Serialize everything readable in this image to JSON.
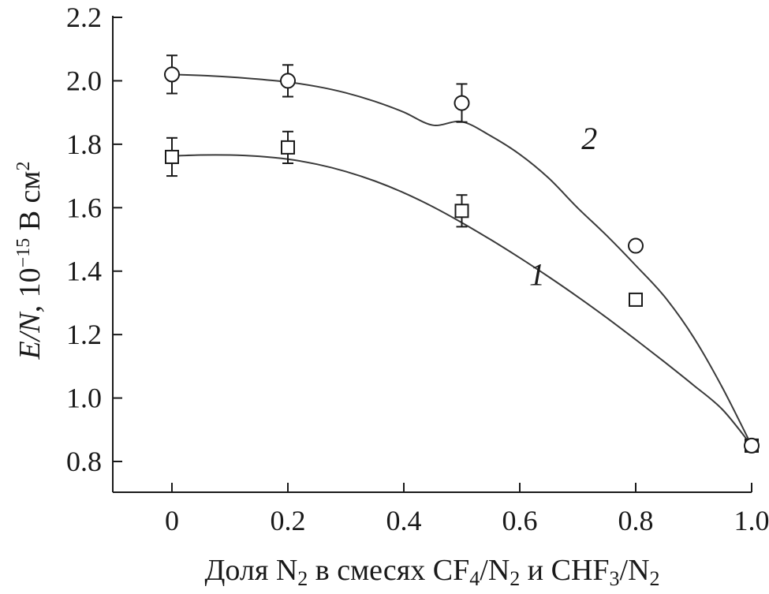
{
  "chart_data": {
    "type": "scatter",
    "xlabel": {
      "parts": [
        {
          "text": "Доля N",
          "sub": false
        },
        {
          "text": "2",
          "sub": true
        },
        {
          "text": " в смесях CF",
          "sub": false
        },
        {
          "text": "4",
          "sub": true
        },
        {
          "text": "/N",
          "sub": false
        },
        {
          "text": "2",
          "sub": true
        },
        {
          "text": " и CHF",
          "sub": false
        },
        {
          "text": "3",
          "sub": true
        },
        {
          "text": "/N",
          "sub": false
        },
        {
          "text": "2",
          "sub": true
        }
      ]
    },
    "ylabel": {
      "quantity": "E/N,",
      "unit_prefix": "10",
      "unit_exponent": "−15",
      "unit_main": " В см",
      "unit_main_exponent": "2"
    },
    "xlim": [
      -0.1,
      1.0
    ],
    "ylim": [
      0.7,
      2.2
    ],
    "x_ticks": [
      0,
      0.2,
      0.4,
      0.6,
      0.8,
      1.0
    ],
    "x_tick_labels": [
      "0",
      "0.2",
      "0.4",
      "0.6",
      "0.8",
      "1.0"
    ],
    "y_ticks": [
      0.8,
      1.0,
      1.2,
      1.4,
      1.6,
      1.8,
      2.0,
      2.2
    ],
    "y_tick_labels": [
      "0.8",
      "1.0",
      "1.2",
      "1.4",
      "1.6",
      "1.8",
      "2.0",
      "2.2"
    ],
    "grid": false,
    "series": [
      {
        "label": "1",
        "marker": "square",
        "points": [
          {
            "x": 0.0,
            "y": 1.76,
            "err": 0.06
          },
          {
            "x": 0.2,
            "y": 1.79,
            "err": 0.05
          },
          {
            "x": 0.5,
            "y": 1.59,
            "err": 0.05
          },
          {
            "x": 0.8,
            "y": 1.31,
            "err": null
          },
          {
            "x": 1.0,
            "y": 0.85,
            "err": null
          }
        ],
        "fit": [
          [
            0.0,
            1.763
          ],
          [
            0.05,
            1.766
          ],
          [
            0.1,
            1.766
          ],
          [
            0.15,
            1.762
          ],
          [
            0.2,
            1.753
          ],
          [
            0.25,
            1.737
          ],
          [
            0.3,
            1.714
          ],
          [
            0.35,
            1.684
          ],
          [
            0.4,
            1.647
          ],
          [
            0.45,
            1.603
          ],
          [
            0.5,
            1.553
          ],
          [
            0.55,
            1.499
          ],
          [
            0.6,
            1.442
          ],
          [
            0.65,
            1.382
          ],
          [
            0.7,
            1.319
          ],
          [
            0.75,
            1.253
          ],
          [
            0.8,
            1.184
          ],
          [
            0.85,
            1.113
          ],
          [
            0.9,
            1.04
          ],
          [
            0.95,
            0.963
          ],
          [
            1.0,
            0.85
          ]
        ],
        "label_at": [
          0.63,
          1.39
        ]
      },
      {
        "label": "2",
        "marker": "circle",
        "points": [
          {
            "x": 0.0,
            "y": 2.02,
            "err": 0.06
          },
          {
            "x": 0.2,
            "y": 2.0,
            "err": 0.05
          },
          {
            "x": 0.5,
            "y": 1.93,
            "err": 0.06
          },
          {
            "x": 0.8,
            "y": 1.48,
            "err": null
          },
          {
            "x": 1.0,
            "y": 0.85,
            "err": null
          }
        ],
        "fit": [
          [
            0.0,
            2.02
          ],
          [
            0.05,
            2.017
          ],
          [
            0.1,
            2.012
          ],
          [
            0.15,
            2.005
          ],
          [
            0.2,
            1.996
          ],
          [
            0.25,
            1.982
          ],
          [
            0.3,
            1.962
          ],
          [
            0.35,
            1.935
          ],
          [
            0.4,
            1.901
          ],
          [
            0.45,
            1.86
          ],
          [
            0.5,
            1.871
          ],
          [
            0.55,
            1.826
          ],
          [
            0.6,
            1.768
          ],
          [
            0.65,
            1.693
          ],
          [
            0.7,
            1.599
          ],
          [
            0.75,
            1.512
          ],
          [
            0.8,
            1.418
          ],
          [
            0.85,
            1.319
          ],
          [
            0.9,
            1.191
          ],
          [
            0.95,
            1.031
          ],
          [
            1.0,
            0.85
          ]
        ],
        "label_at": [
          0.72,
          1.82
        ]
      }
    ]
  }
}
